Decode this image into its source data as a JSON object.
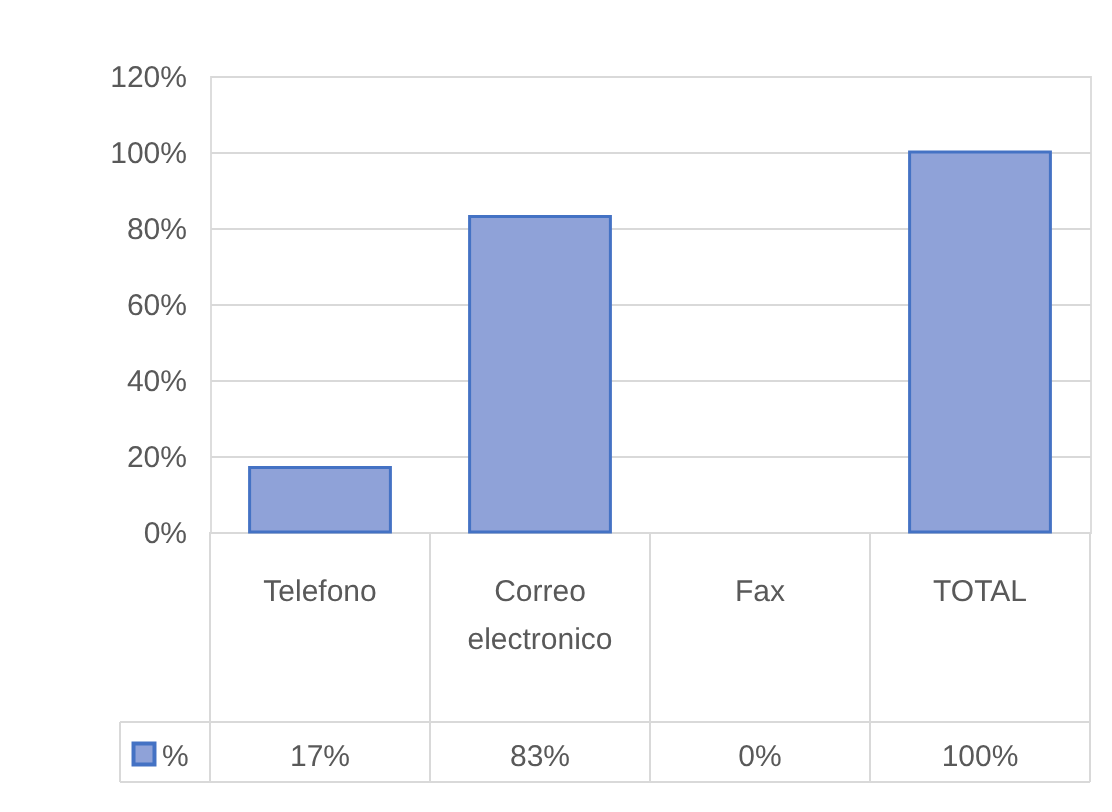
{
  "chart_data": {
    "type": "bar",
    "categories": [
      "Telefono",
      "Correo electronico",
      "Fax",
      "TOTAL"
    ],
    "series": [
      {
        "name": "%",
        "color": "#8fa2d8",
        "values": [
          17,
          83,
          0,
          100
        ]
      }
    ],
    "value_labels": [
      "17%",
      "83%",
      "0%",
      "100%"
    ],
    "ylim": [
      0,
      120
    ],
    "yticks": [
      {
        "value": 0,
        "label": "0%"
      },
      {
        "value": 20,
        "label": "20%"
      },
      {
        "value": 40,
        "label": "40%"
      },
      {
        "value": 60,
        "label": "60%"
      },
      {
        "value": 80,
        "label": "80%"
      },
      {
        "value": 100,
        "label": "100%"
      },
      {
        "value": 120,
        "label": "120%"
      }
    ],
    "grid": "y",
    "legend": "bottom left"
  }
}
